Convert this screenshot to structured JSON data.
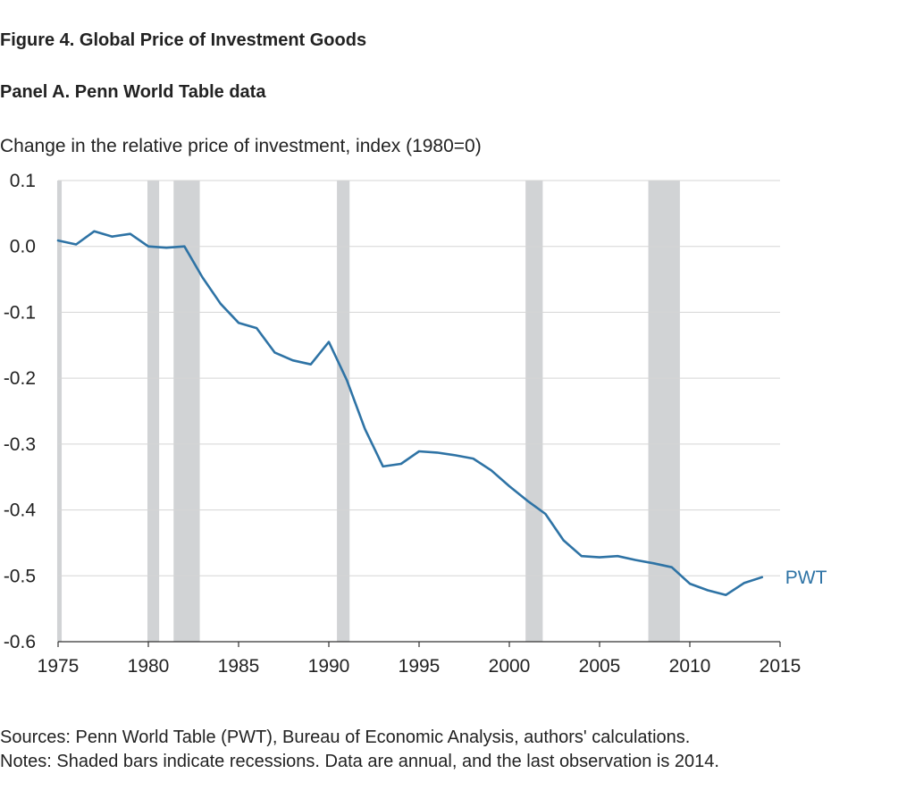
{
  "figure_title": "Figure 4. Global Price of Investment Goods",
  "panel_title": "Panel A. Penn World Table data",
  "sources": "Sources: Penn World Table (PWT), Bureau of Economic Analysis, authors' calculations.",
  "notes": "Notes: Shaded bars indicate recessions. Data are annual, and the last observation is 2014.",
  "chart_data": {
    "type": "line",
    "ylabel": "Change in the relative price of investment, index (1980=0)",
    "xlabel": "",
    "xlim": [
      1975,
      2015
    ],
    "ylim": [
      -0.6,
      0.1
    ],
    "x_ticks": [
      1975,
      1980,
      1985,
      1990,
      1995,
      2000,
      2005,
      2010,
      2015
    ],
    "y_ticks": [
      0.1,
      0.0,
      -0.1,
      -0.2,
      -0.3,
      -0.4,
      -0.5,
      -0.6
    ],
    "y_tick_labels": [
      "0.1",
      "0.0",
      "-0.1",
      "-0.2",
      "-0.3",
      "-0.4",
      "-0.5",
      "-0.6"
    ],
    "grid": true,
    "recessions": [
      [
        1974.95,
        1975.2
      ],
      [
        1979.95,
        1980.6
      ],
      [
        1981.4,
        1982.85
      ],
      [
        1990.45,
        1991.15
      ],
      [
        2000.9,
        2001.85
      ],
      [
        2007.7,
        2009.45
      ]
    ],
    "series": [
      {
        "name": "PWT",
        "color": "#2e73a5",
        "x": [
          1975,
          1976,
          1977,
          1978,
          1979,
          1980,
          1981,
          1982,
          1983,
          1984,
          1985,
          1986,
          1987,
          1988,
          1989,
          1990,
          1991,
          1992,
          1993,
          1994,
          1995,
          1996,
          1997,
          1998,
          1999,
          2000,
          2001,
          2002,
          2003,
          2004,
          2005,
          2006,
          2007,
          2008,
          2009,
          2010,
          2011,
          2012,
          2013,
          2014
        ],
        "values": [
          0.009,
          0.003,
          0.023,
          0.015,
          0.019,
          0.0,
          -0.002,
          0.0,
          -0.047,
          -0.087,
          -0.116,
          -0.124,
          -0.161,
          -0.173,
          -0.179,
          -0.145,
          -0.203,
          -0.277,
          -0.334,
          -0.33,
          -0.311,
          -0.313,
          -0.317,
          -0.322,
          -0.34,
          -0.364,
          -0.386,
          -0.406,
          -0.446,
          -0.47,
          -0.472,
          -0.47,
          -0.476,
          -0.481,
          -0.487,
          -0.512,
          -0.522,
          -0.529,
          -0.511,
          -0.502
        ]
      }
    ]
  }
}
